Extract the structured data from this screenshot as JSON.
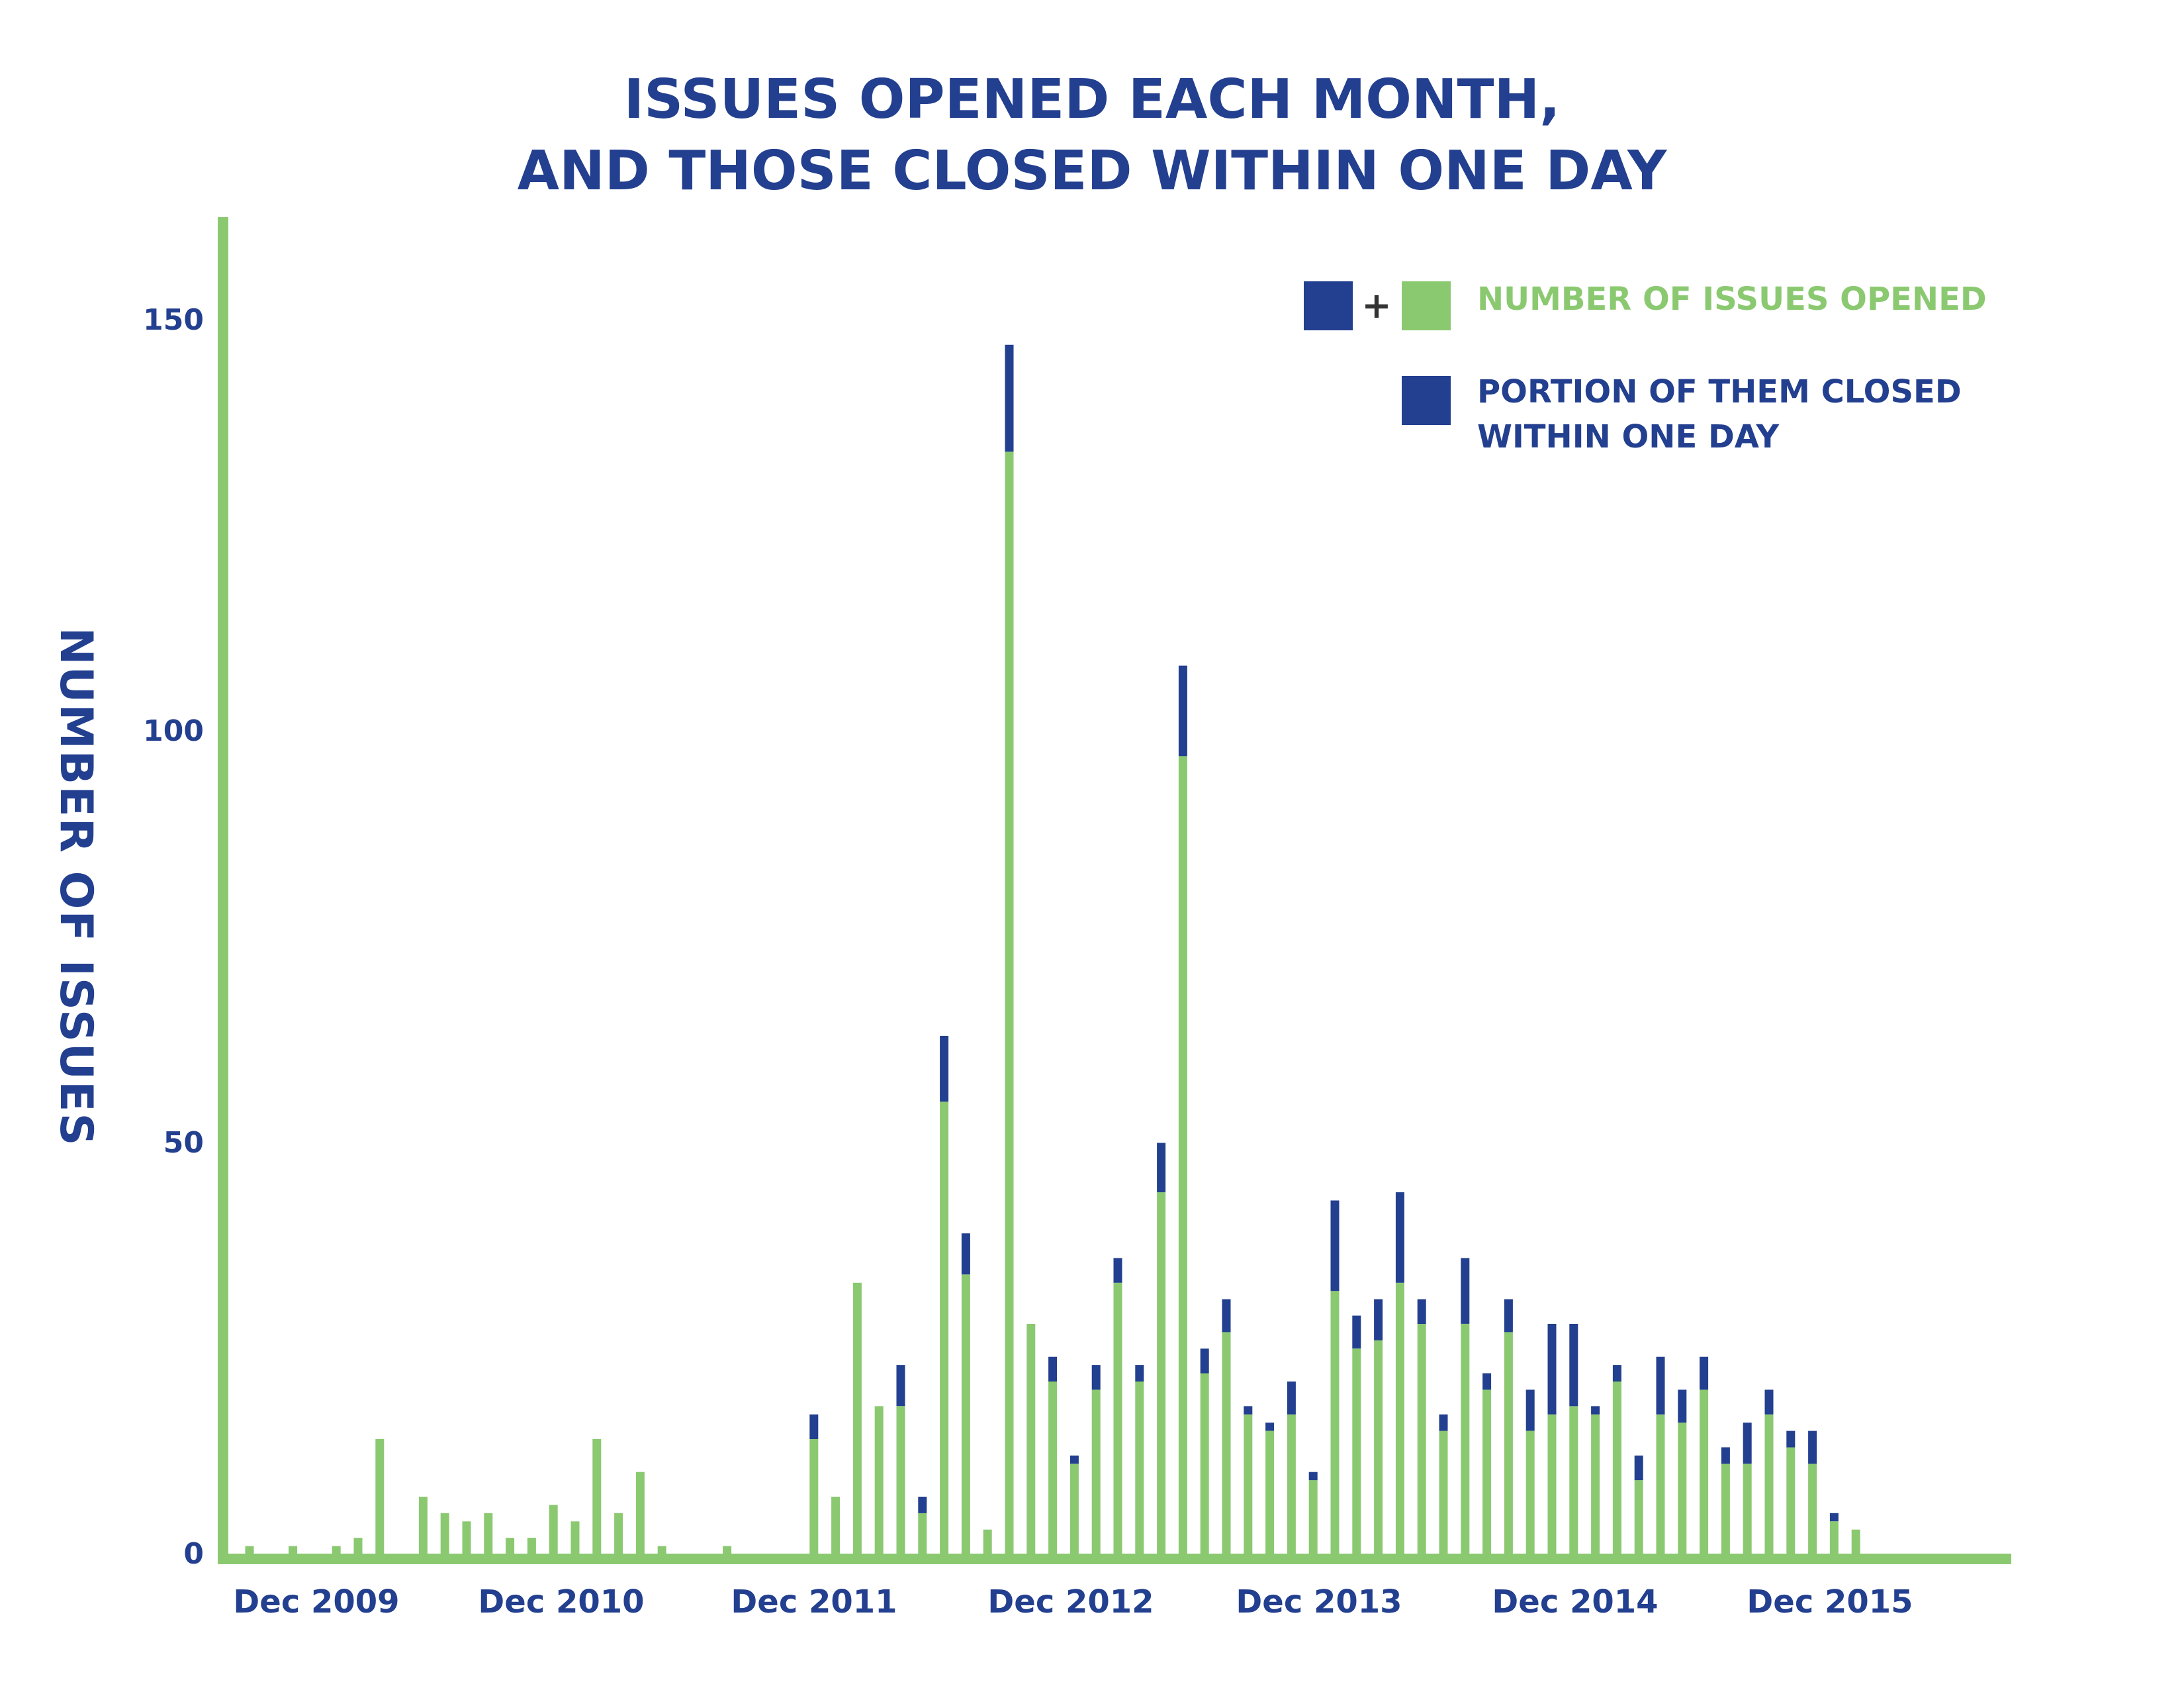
{
  "chart_data": {
    "type": "bar",
    "stacked": true,
    "title_line1": "ISSUES OPENED EACH MONTH,",
    "title_line2": "AND THOSE CLOSED WITHIN ONE DAY",
    "ylabel": "NUMBER OF ISSUES",
    "xlabel": "",
    "ylim": [
      0,
      165
    ],
    "yticks": [
      0,
      50,
      100,
      150
    ],
    "xtick_labels": [
      "Dec 2009",
      "Dec 2010",
      "Dec 2011",
      "Dec 2012",
      "Dec 2013",
      "Dec 2014",
      "Dec 2015"
    ],
    "legend": {
      "plus": "+",
      "opened": "NUMBER OF ISSUES OPENED",
      "closed_line1": "PORTION OF THEM CLOSED",
      "closed_line2": "WITHIN ONE DAY"
    },
    "colors": {
      "opened": "#8bc971",
      "closed": "#233f8f",
      "title": "#233f8f"
    },
    "series": [
      {
        "name": "NUMBER OF ISSUES OPENED",
        "months": [
          "Sep 2009",
          "Oct 2009",
          "Nov 2009",
          "Dec 2009",
          "Jan 2010",
          "Feb 2010",
          "Mar 2010",
          "Apr 2010",
          "May 2010",
          "Jun 2010",
          "Jul 2010",
          "Aug 2010",
          "Sep 2010",
          "Oct 2010",
          "Nov 2010",
          "Dec 2010",
          "Jan 2011",
          "Feb 2011",
          "Mar 2011",
          "Apr 2011",
          "May 2011",
          "Jun 2011",
          "Jul 2011",
          "Aug 2011",
          "Sep 2011",
          "Oct 2011",
          "Nov 2011",
          "Dec 2011",
          "Jan 2012",
          "Feb 2012",
          "Mar 2012",
          "Apr 2012",
          "May 2012",
          "Jun 2012",
          "Jul 2012",
          "Aug 2012",
          "Sep 2012",
          "Oct 2012",
          "Nov 2012",
          "Dec 2012",
          "Jan 2013",
          "Feb 2013",
          "Mar 2013",
          "Apr 2013",
          "May 2013",
          "Jun 2013",
          "Jul 2013",
          "Aug 2013",
          "Sep 2013",
          "Oct 2013",
          "Nov 2013",
          "Dec 2013",
          "Jan 2014",
          "Feb 2014",
          "Mar 2014",
          "Apr 2014",
          "May 2014",
          "Jun 2014",
          "Jul 2014",
          "Aug 2014",
          "Sep 2014",
          "Oct 2014",
          "Nov 2014",
          "Dec 2014",
          "Jan 2015",
          "Feb 2015",
          "Mar 2015",
          "Apr 2015",
          "May 2015",
          "Jun 2015",
          "Jul 2015",
          "Aug 2015",
          "Sep 2015",
          "Oct 2015",
          "Nov 2015",
          "Dec 2015",
          "Jan 2016",
          "Feb 2016",
          "Mar 2016",
          "Apr 2016",
          "May 2016"
        ],
        "values": [
          1,
          0,
          1,
          0,
          1,
          2,
          14,
          0,
          7,
          5,
          4,
          5,
          2,
          2,
          6,
          4,
          14,
          5,
          10,
          1,
          0,
          0,
          1,
          0,
          0,
          0,
          17,
          7,
          33,
          18,
          23,
          7,
          63,
          39,
          3,
          147,
          28,
          24,
          12,
          23,
          36,
          23,
          50,
          108,
          25,
          31,
          18,
          16,
          21,
          10,
          43,
          29,
          31,
          44,
          31,
          17,
          36,
          22,
          31,
          20,
          28,
          28,
          18,
          23,
          12,
          24,
          20,
          24,
          13,
          16,
          20,
          15,
          15,
          5,
          3,
          0,
          0,
          0,
          0,
          0,
          0
        ]
      },
      {
        "name": "PORTION OF THEM CLOSED WITHIN ONE DAY",
        "values": [
          0,
          0,
          0,
          0,
          0,
          0,
          0,
          0,
          0,
          0,
          0,
          0,
          0,
          0,
          0,
          0,
          0,
          0,
          0,
          0,
          0,
          0,
          0,
          0,
          0,
          0,
          3,
          0,
          0,
          0,
          5,
          2,
          8,
          5,
          0,
          13,
          0,
          3,
          1,
          3,
          3,
          2,
          6,
          11,
          3,
          4,
          1,
          1,
          4,
          1,
          11,
          4,
          5,
          11,
          3,
          2,
          8,
          2,
          4,
          5,
          11,
          10,
          1,
          2,
          3,
          7,
          4,
          4,
          2,
          5,
          3,
          2,
          4,
          1,
          0,
          0,
          0,
          0,
          0,
          0,
          0
        ]
      }
    ]
  }
}
